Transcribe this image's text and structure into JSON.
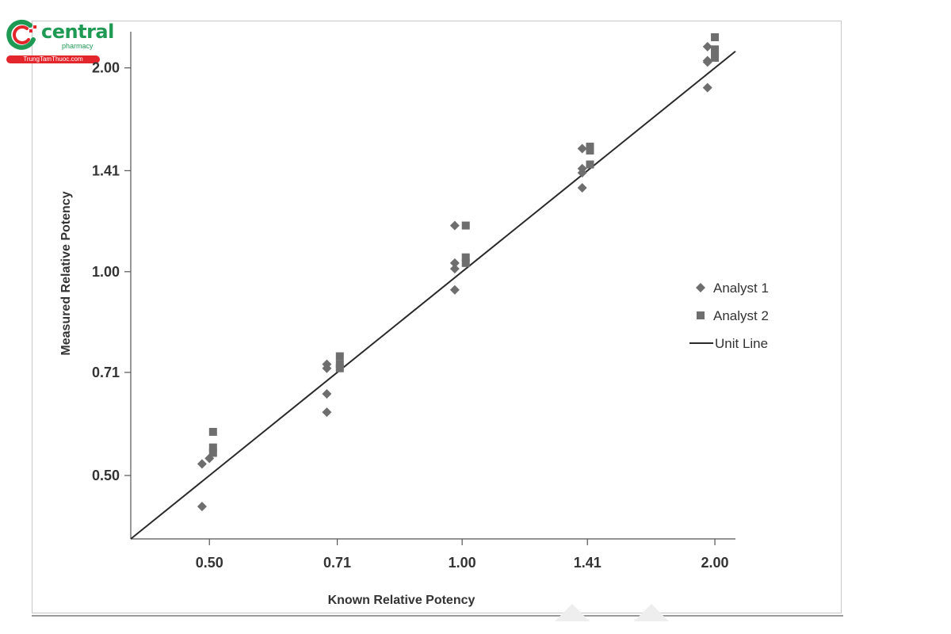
{
  "logo": {
    "name": "central",
    "sub": "pharmacy",
    "site": "TrungTamThuoc.com"
  },
  "chart_data": {
    "type": "scatter",
    "title": "",
    "xlabel": "Known Relative Potency",
    "ylabel": "Measured Relative Potency",
    "x_scale": "log2",
    "y_scale": "log2",
    "xlim": [
      0.403,
      2.116
    ],
    "ylim": [
      0.403,
      2.262
    ],
    "x_ticks": [
      0.5,
      0.71,
      1.0,
      1.41,
      2.0
    ],
    "x_tick_labels": [
      "0.50",
      "0.71",
      "1.00",
      "1.41",
      "2.00"
    ],
    "y_ticks": [
      0.5,
      0.71,
      1.0,
      1.41,
      2.0
    ],
    "y_tick_labels": [
      "0.50",
      "0.71",
      "1.00",
      "1.41",
      "2.00"
    ],
    "grid": false,
    "legend": "right",
    "series": [
      {
        "name": "Analyst 1",
        "marker": "diamond",
        "color": "#6e6e6e",
        "points": [
          {
            "x": 0.49,
            "y": 0.52
          },
          {
            "x": 0.49,
            "y": 0.45
          },
          {
            "x": 0.5,
            "y": 0.53
          },
          {
            "x": 0.69,
            "y": 0.73
          },
          {
            "x": 0.69,
            "y": 0.72
          },
          {
            "x": 0.69,
            "y": 0.66
          },
          {
            "x": 0.69,
            "y": 0.62
          },
          {
            "x": 0.98,
            "y": 1.17
          },
          {
            "x": 0.98,
            "y": 1.03
          },
          {
            "x": 0.98,
            "y": 1.01
          },
          {
            "x": 0.98,
            "y": 0.94
          },
          {
            "x": 1.39,
            "y": 1.52
          },
          {
            "x": 1.39,
            "y": 1.42
          },
          {
            "x": 1.39,
            "y": 1.4
          },
          {
            "x": 1.39,
            "y": 1.33
          },
          {
            "x": 1.96,
            "y": 2.15
          },
          {
            "x": 1.96,
            "y": 2.05
          },
          {
            "x": 1.96,
            "y": 2.04
          },
          {
            "x": 1.96,
            "y": 1.87
          }
        ]
      },
      {
        "name": "Analyst 2",
        "marker": "square",
        "color": "#6e6e6e",
        "points": [
          {
            "x": 0.505,
            "y": 0.58
          },
          {
            "x": 0.505,
            "y": 0.55
          },
          {
            "x": 0.505,
            "y": 0.54
          },
          {
            "x": 0.715,
            "y": 0.75
          },
          {
            "x": 0.715,
            "y": 0.73
          },
          {
            "x": 0.715,
            "y": 0.72
          },
          {
            "x": 1.01,
            "y": 1.17
          },
          {
            "x": 1.01,
            "y": 1.05
          },
          {
            "x": 1.01,
            "y": 1.03
          },
          {
            "x": 1.42,
            "y": 1.53
          },
          {
            "x": 1.42,
            "y": 1.51
          },
          {
            "x": 1.42,
            "y": 1.44
          },
          {
            "x": 2.0,
            "y": 2.22
          },
          {
            "x": 2.0,
            "y": 2.13
          },
          {
            "x": 2.0,
            "y": 2.1
          },
          {
            "x": 2.0,
            "y": 2.07
          }
        ]
      },
      {
        "name": "Unit Line",
        "marker": "line",
        "color": "#2a2a2a",
        "points": [
          {
            "x": 0.403,
            "y": 0.403
          },
          {
            "x": 2.116,
            "y": 2.116
          }
        ]
      }
    ]
  }
}
